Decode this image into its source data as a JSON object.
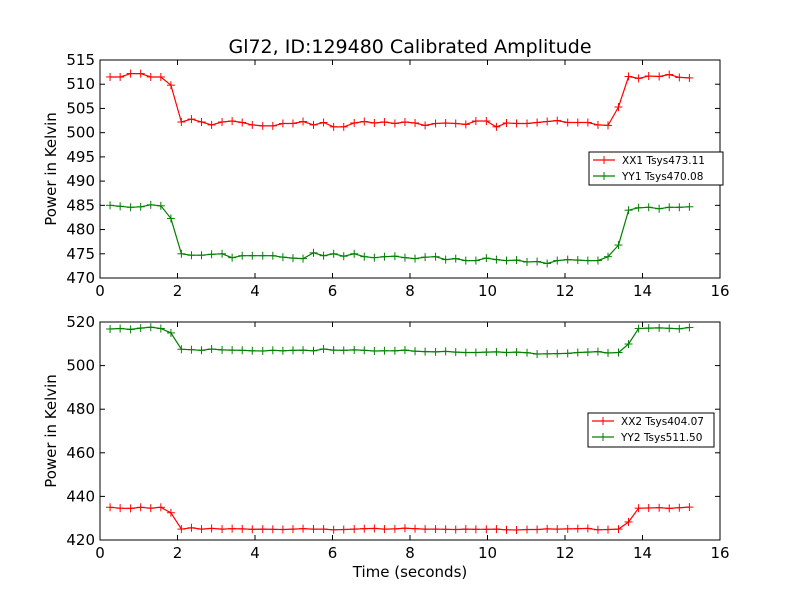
{
  "figure": {
    "title": "Gl72, ID:129480 Calibrated Amplitude",
    "xlabel": "Time (seconds)",
    "ylabel": "Power in Kelvin"
  },
  "colors": {
    "red": "#ff0000",
    "green": "#008000"
  },
  "chart_data": [
    {
      "type": "line",
      "title": "Gl72, ID:129480 Calibrated Amplitude",
      "xlabel": "",
      "ylabel": "Power in Kelvin",
      "xlim": [
        0,
        16
      ],
      "ylim": [
        470,
        515
      ],
      "xticks": [
        "0",
        "2",
        "4",
        "6",
        "8",
        "10",
        "12",
        "14",
        "16"
      ],
      "yticks": [
        "470",
        "475",
        "480",
        "485",
        "490",
        "495",
        "500",
        "505",
        "510",
        "515"
      ],
      "legend_position": "right",
      "series": [
        {
          "name": "XX1 Tsys473.11",
          "color": "#ff0000",
          "x": [
            0.26,
            0.52,
            0.79,
            1.05,
            1.31,
            1.57,
            1.83,
            2.1,
            2.36,
            2.62,
            2.88,
            3.15,
            3.41,
            3.67,
            3.93,
            4.2,
            4.46,
            4.72,
            4.98,
            5.24,
            5.51,
            5.77,
            6.03,
            6.29,
            6.56,
            6.82,
            7.08,
            7.34,
            7.61,
            7.87,
            8.13,
            8.39,
            8.66,
            8.92,
            9.18,
            9.44,
            9.7,
            9.97,
            10.23,
            10.49,
            10.75,
            11.02,
            11.28,
            11.54,
            11.8,
            12.07,
            12.33,
            12.59,
            12.85,
            13.11,
            13.38,
            13.64,
            13.9,
            14.16,
            14.43,
            14.69,
            14.95,
            15.21
          ],
          "y": [
            511.5,
            511.5,
            512.2,
            512.2,
            511.5,
            511.5,
            509.8,
            502.2,
            502.8,
            502.2,
            501.6,
            502.2,
            502.4,
            502.1,
            501.6,
            501.4,
            501.4,
            501.9,
            501.9,
            502.3,
            501.6,
            502.1,
            501.2,
            501.2,
            502.0,
            502.3,
            502.0,
            502.2,
            501.9,
            502.2,
            502.0,
            501.5,
            501.9,
            502.0,
            501.9,
            501.7,
            502.4,
            502.4,
            501.2,
            502.0,
            501.9,
            501.9,
            502.1,
            502.3,
            502.5,
            502.1,
            502.1,
            502.1,
            501.6,
            501.5,
            505.3,
            511.6,
            511.2,
            511.7,
            511.6,
            512.0,
            511.4,
            511.3
          ]
        },
        {
          "name": "YY1 Tsys470.08",
          "color": "#008000",
          "x": [
            0.26,
            0.52,
            0.79,
            1.05,
            1.31,
            1.57,
            1.83,
            2.1,
            2.36,
            2.62,
            2.88,
            3.15,
            3.41,
            3.67,
            3.93,
            4.2,
            4.46,
            4.72,
            4.98,
            5.24,
            5.51,
            5.77,
            6.03,
            6.29,
            6.56,
            6.82,
            7.08,
            7.34,
            7.61,
            7.87,
            8.13,
            8.39,
            8.66,
            8.92,
            9.18,
            9.44,
            9.7,
            9.97,
            10.23,
            10.49,
            10.75,
            11.02,
            11.28,
            11.54,
            11.8,
            12.07,
            12.33,
            12.59,
            12.85,
            13.11,
            13.38,
            13.64,
            13.9,
            14.16,
            14.43,
            14.69,
            14.95,
            15.21
          ],
          "y": [
            485.0,
            484.8,
            484.6,
            484.7,
            485.1,
            484.9,
            482.3,
            475.0,
            474.7,
            474.7,
            474.9,
            475.0,
            474.2,
            474.6,
            474.6,
            474.6,
            474.6,
            474.3,
            474.1,
            474.0,
            475.2,
            474.6,
            475.0,
            474.5,
            475.0,
            474.4,
            474.2,
            474.4,
            474.5,
            474.2,
            474.0,
            474.3,
            474.4,
            473.8,
            474.0,
            473.6,
            473.6,
            474.1,
            473.8,
            473.6,
            473.7,
            473.3,
            473.4,
            473.0,
            473.6,
            473.8,
            473.7,
            473.6,
            473.6,
            474.4,
            476.8,
            484.0,
            484.5,
            484.6,
            484.3,
            484.6,
            484.6,
            484.7
          ]
        }
      ]
    },
    {
      "type": "line",
      "title": "",
      "xlabel": "Time (seconds)",
      "ylabel": "Power in Kelvin",
      "xlim": [
        0,
        16
      ],
      "ylim": [
        420,
        520
      ],
      "xticks": [
        "0",
        "2",
        "4",
        "6",
        "8",
        "10",
        "12",
        "14",
        "16"
      ],
      "yticks": [
        "420",
        "440",
        "460",
        "480",
        "500",
        "520"
      ],
      "legend_position": "right",
      "series": [
        {
          "name": "XX2 Tsys404.07",
          "color": "#ff0000",
          "x": [
            0.26,
            0.52,
            0.79,
            1.05,
            1.31,
            1.57,
            1.83,
            2.1,
            2.36,
            2.62,
            2.88,
            3.15,
            3.41,
            3.67,
            3.93,
            4.2,
            4.46,
            4.72,
            4.98,
            5.24,
            5.51,
            5.77,
            6.03,
            6.29,
            6.56,
            6.82,
            7.08,
            7.34,
            7.61,
            7.87,
            8.13,
            8.39,
            8.66,
            8.92,
            9.18,
            9.44,
            9.7,
            9.97,
            10.23,
            10.49,
            10.75,
            11.02,
            11.28,
            11.54,
            11.8,
            12.07,
            12.33,
            12.59,
            12.85,
            13.11,
            13.38,
            13.64,
            13.9,
            14.16,
            14.43,
            14.69,
            14.95,
            15.21
          ],
          "y": [
            435.0,
            434.6,
            434.5,
            435.0,
            434.6,
            435.0,
            432.5,
            425.0,
            425.6,
            425.0,
            425.3,
            425.0,
            425.2,
            425.1,
            424.9,
            425.0,
            424.9,
            424.8,
            425.0,
            425.2,
            425.0,
            425.0,
            424.7,
            424.8,
            425.0,
            425.2,
            425.3,
            425.0,
            425.1,
            425.4,
            425.2,
            425.0,
            425.0,
            424.9,
            424.8,
            425.0,
            424.9,
            424.9,
            425.0,
            424.7,
            424.6,
            424.8,
            424.8,
            425.1,
            425.0,
            425.1,
            425.2,
            425.3,
            424.7,
            424.8,
            425.0,
            428.3,
            434.6,
            434.7,
            434.8,
            434.5,
            434.8,
            435.1
          ]
        },
        {
          "name": "YY2 Tsys511.50",
          "color": "#008000",
          "x": [
            0.26,
            0.52,
            0.79,
            1.05,
            1.31,
            1.57,
            1.83,
            2.1,
            2.36,
            2.62,
            2.88,
            3.15,
            3.41,
            3.67,
            3.93,
            4.2,
            4.46,
            4.72,
            4.98,
            5.24,
            5.51,
            5.77,
            6.03,
            6.29,
            6.56,
            6.82,
            7.08,
            7.34,
            7.61,
            7.87,
            8.13,
            8.39,
            8.66,
            8.92,
            9.18,
            9.44,
            9.7,
            9.97,
            10.23,
            10.49,
            10.75,
            11.02,
            11.28,
            11.54,
            11.8,
            12.07,
            12.33,
            12.59,
            12.85,
            13.11,
            13.38,
            13.64,
            13.9,
            14.16,
            14.43,
            14.69,
            14.95,
            15.21
          ],
          "y": [
            516.8,
            517.0,
            516.6,
            517.2,
            517.6,
            517.0,
            515.0,
            507.5,
            507.3,
            507.0,
            507.6,
            507.2,
            507.1,
            507.0,
            506.8,
            506.7,
            507.0,
            506.8,
            507.0,
            507.1,
            506.8,
            507.6,
            507.1,
            507.0,
            507.2,
            507.0,
            506.7,
            506.8,
            506.8,
            507.1,
            506.6,
            506.4,
            506.3,
            506.5,
            506.2,
            506.0,
            506.0,
            506.2,
            506.3,
            506.0,
            506.2,
            505.9,
            505.3,
            505.4,
            505.5,
            505.6,
            506.0,
            506.2,
            506.4,
            505.8,
            506.0,
            509.9,
            517.0,
            517.2,
            517.3,
            517.1,
            516.9,
            517.5
          ]
        }
      ]
    }
  ]
}
